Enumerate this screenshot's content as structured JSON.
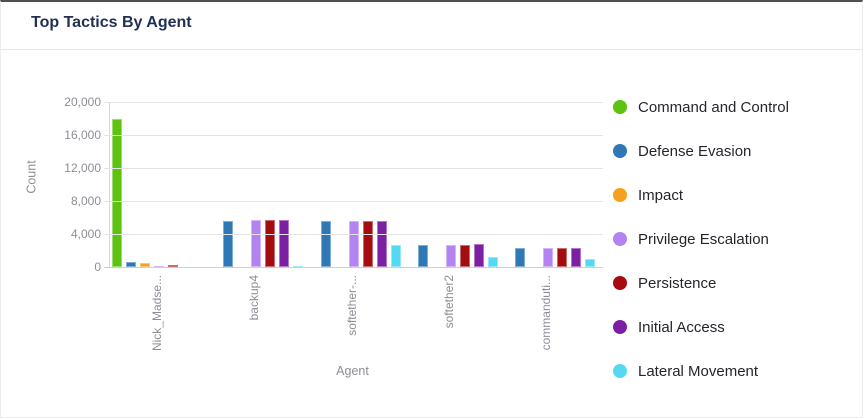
{
  "card": {
    "title": "Top Tactics By Agent"
  },
  "chart_data": {
    "type": "bar",
    "title": "Top Tactics By Agent",
    "xlabel": "Agent",
    "ylabel": "Count",
    "ylim": [
      0,
      20000
    ],
    "ytick_step": 4000,
    "ytick_labels": [
      "20,000",
      "16,000",
      "12,000",
      "8,000",
      "4,000",
      "0"
    ],
    "grid": true,
    "legend_position": "right",
    "categories": [
      "Nick_Madse...",
      "backup4",
      "softether-...",
      "softether2",
      "commanduti..."
    ],
    "series": [
      {
        "name": "Command and Control",
        "color": "#5ec310",
        "values": [
          17900,
          0,
          0,
          0,
          0
        ]
      },
      {
        "name": "Defense Evasion",
        "color": "#2e78b6",
        "values": [
          650,
          5600,
          5600,
          2650,
          2350
        ]
      },
      {
        "name": "Impact",
        "color": "#f5a11d",
        "values": [
          450,
          0,
          0,
          0,
          0
        ]
      },
      {
        "name": "Privilege Escalation",
        "color": "#b483f2",
        "values": [
          150,
          5650,
          5550,
          2650,
          2250
        ]
      },
      {
        "name": "Persistence",
        "color": "#a40c10",
        "values": [
          200,
          5650,
          5550,
          2650,
          2350
        ]
      },
      {
        "name": "Initial Access",
        "color": "#7c1fa2",
        "values": [
          0,
          5650,
          5550,
          2750,
          2350
        ]
      },
      {
        "name": "Lateral Movement",
        "color": "#55d9f2",
        "values": [
          0,
          150,
          2650,
          1250,
          1000
        ]
      }
    ]
  }
}
